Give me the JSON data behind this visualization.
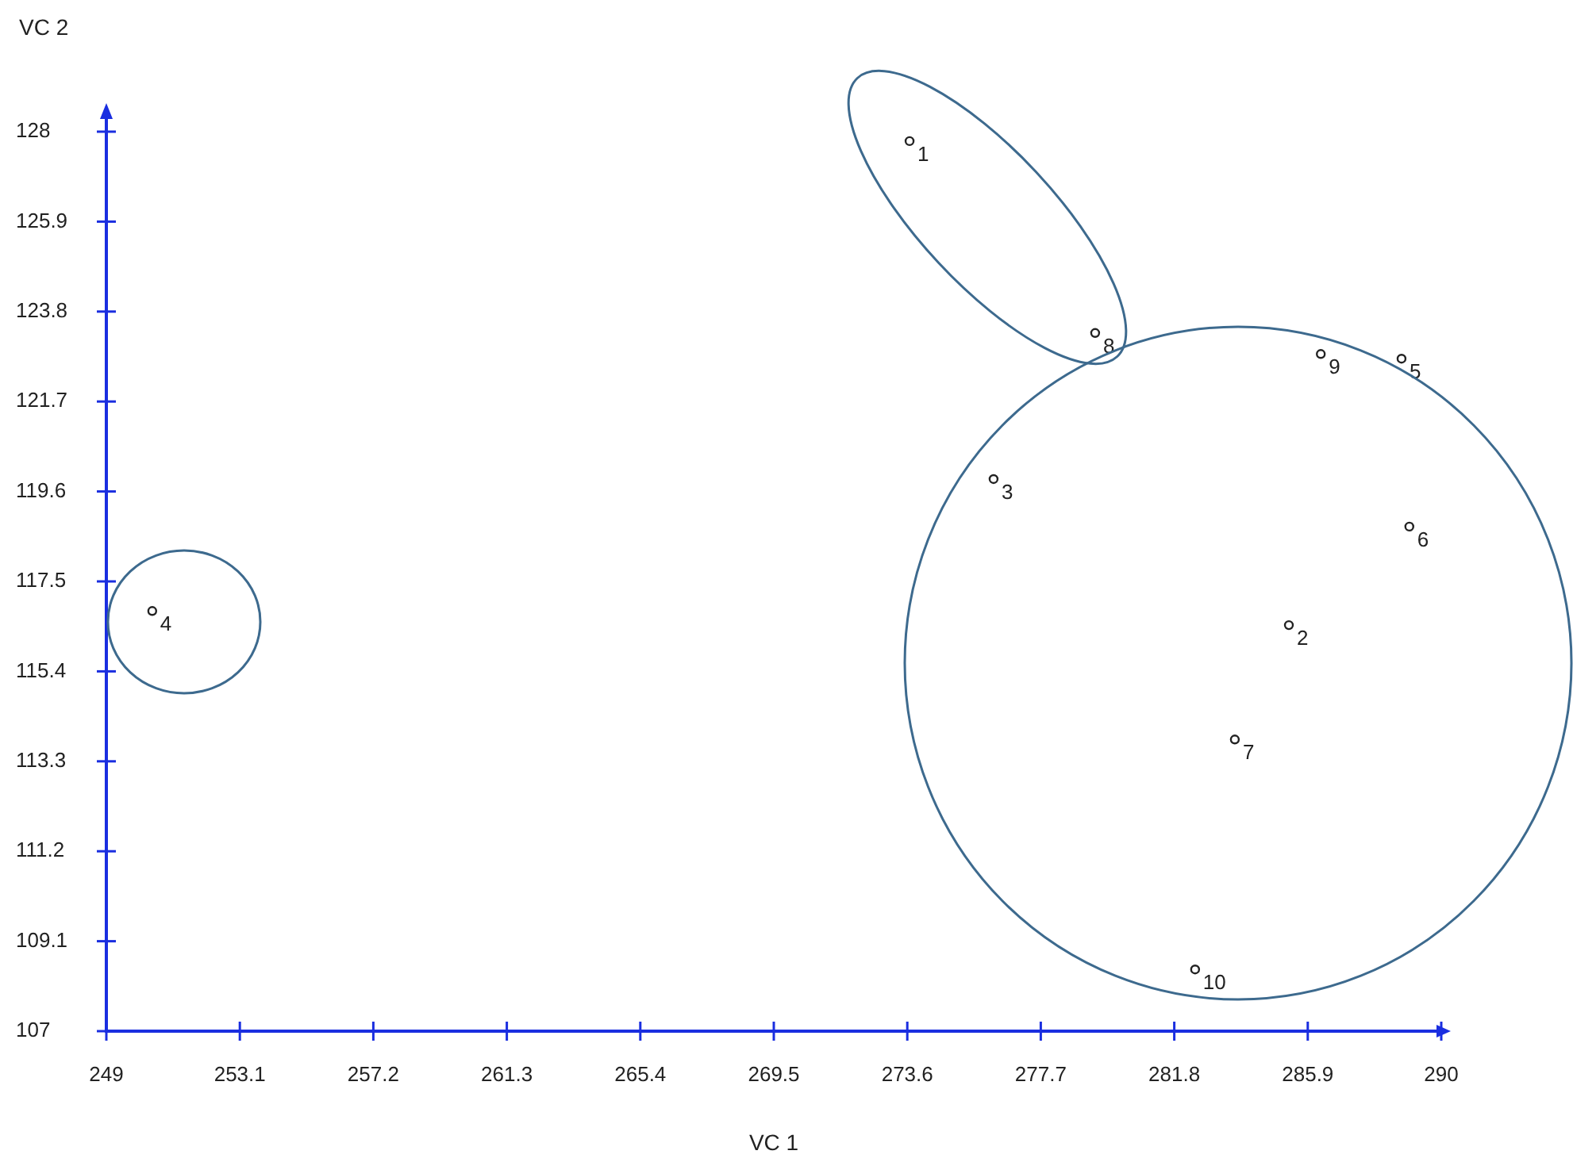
{
  "chart_data": {
    "type": "scatter",
    "xlabel": "VC 1",
    "ylabel": "VC 2",
    "xlim": [
      249,
      290
    ],
    "xticks": [
      249,
      253.1,
      257.2,
      261.3,
      265.4,
      269.5,
      273.6,
      277.7,
      281.8,
      285.9,
      290
    ],
    "ylim": [
      107,
      128
    ],
    "yticks": [
      107,
      109.1,
      111.2,
      113.3,
      115.4,
      117.5,
      119.6,
      121.7,
      123.8,
      125.9,
      128
    ],
    "marker": "circle",
    "series": [
      {
        "color": "#222222",
        "x": [
          273.67,
          285.32,
          276.25,
          250.41,
          288.78,
          289.02,
          283.66,
          279.37,
          286.3,
          282.44
        ],
        "values": [
          127.78,
          116.48,
          119.89,
          116.81,
          122.7,
          118.78,
          113.81,
          123.3,
          122.81,
          108.44
        ]
      }
    ],
    "annotations": [
      {
        "text": "1",
        "x": 273.67,
        "y": 127.78
      },
      {
        "text": "2",
        "x": 285.32,
        "y": 116.48
      },
      {
        "text": "3",
        "x": 276.25,
        "y": 119.89
      },
      {
        "text": "4",
        "x": 250.41,
        "y": 116.81
      },
      {
        "text": "5",
        "x": 288.78,
        "y": 122.7
      },
      {
        "text": "6",
        "x": 289.02,
        "y": 118.78
      },
      {
        "text": "7",
        "x": 283.66,
        "y": 113.81
      },
      {
        "text": "8",
        "x": 279.37,
        "y": 123.3
      },
      {
        "text": "9",
        "x": 286.3,
        "y": 122.81
      },
      {
        "text": "10",
        "x": 282.44,
        "y": 108.44
      }
    ]
  }
}
